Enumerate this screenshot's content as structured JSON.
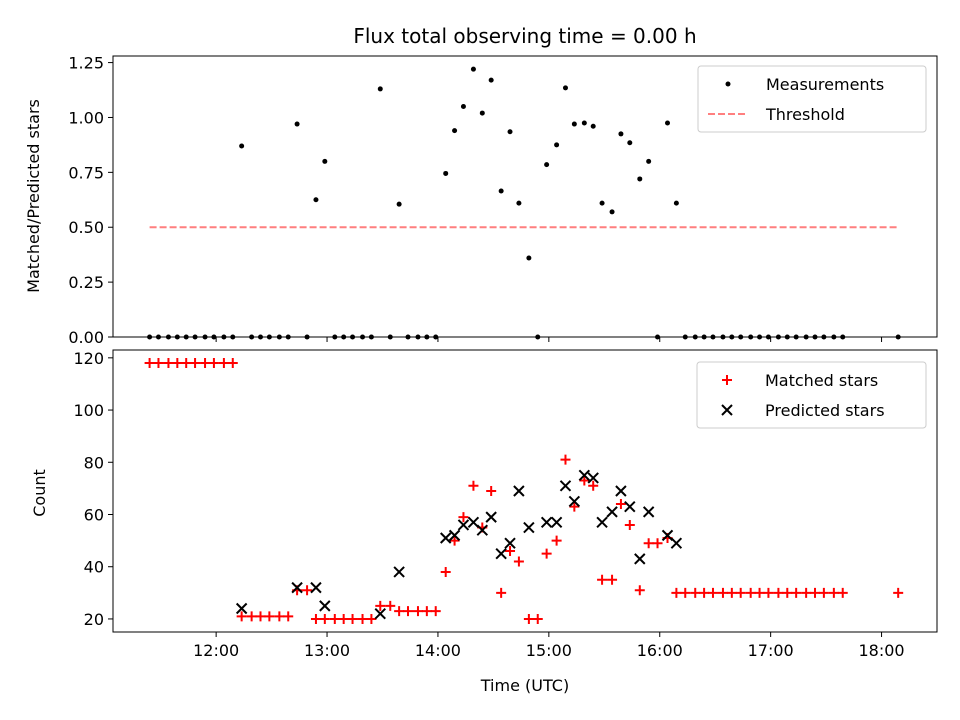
{
  "chart_data": [
    {
      "type": "scatter",
      "title": "Flux total observing time = 0.00 h",
      "ylabel": "Matched/Predicted stars",
      "xlabel": "",
      "xlim": [
        11.07,
        18.5
      ],
      "ylim": [
        0,
        1.28
      ],
      "xticks": [
        "12:00",
        "13:00",
        "14:00",
        "15:00",
        "16:00",
        "17:00",
        "18:00"
      ],
      "xtick_values": [
        12,
        13,
        14,
        15,
        16,
        17,
        18
      ],
      "xtick_labels_visible": false,
      "yticks": [
        "0.00",
        "0.25",
        "0.50",
        "0.75",
        "1.00",
        "1.25"
      ],
      "ytick_values": [
        0,
        0.25,
        0.5,
        0.75,
        1.0,
        1.25
      ],
      "legend": "top-right",
      "grid": false,
      "series": [
        {
          "name": "Measurements",
          "color": "#000000",
          "marker": "dot",
          "points": [
            [
              11.4,
              0
            ],
            [
              11.48,
              0
            ],
            [
              11.57,
              0
            ],
            [
              11.65,
              0
            ],
            [
              11.73,
              0
            ],
            [
              11.81,
              0
            ],
            [
              11.9,
              0
            ],
            [
              11.98,
              0
            ],
            [
              12.07,
              0
            ],
            [
              12.15,
              0
            ],
            [
              12.23,
              0.87
            ],
            [
              12.32,
              0
            ],
            [
              12.4,
              0
            ],
            [
              12.48,
              0
            ],
            [
              12.57,
              0
            ],
            [
              12.65,
              0
            ],
            [
              12.73,
              0.97
            ],
            [
              12.82,
              0
            ],
            [
              12.9,
              0.625
            ],
            [
              12.98,
              0.8
            ],
            [
              13.07,
              0
            ],
            [
              13.15,
              0
            ],
            [
              13.23,
              0
            ],
            [
              13.32,
              0
            ],
            [
              13.4,
              0
            ],
            [
              13.48,
              1.13
            ],
            [
              13.57,
              0
            ],
            [
              13.65,
              0.605
            ],
            [
              13.73,
              0
            ],
            [
              13.82,
              0
            ],
            [
              13.9,
              0
            ],
            [
              13.98,
              0
            ],
            [
              14.07,
              0.745
            ],
            [
              14.15,
              0.94
            ],
            [
              14.23,
              1.05
            ],
            [
              14.32,
              1.22
            ],
            [
              14.4,
              1.02
            ],
            [
              14.48,
              1.17
            ],
            [
              14.57,
              0.665
            ],
            [
              14.65,
              0.935
            ],
            [
              14.73,
              0.61
            ],
            [
              14.82,
              0.36
            ],
            [
              14.9,
              0
            ],
            [
              14.98,
              0.785
            ],
            [
              15.07,
              0.875
            ],
            [
              15.15,
              1.135
            ],
            [
              15.23,
              0.97
            ],
            [
              15.32,
              0.975
            ],
            [
              15.4,
              0.96
            ],
            [
              15.48,
              0.61
            ],
            [
              15.57,
              0.57
            ],
            [
              15.65,
              0.925
            ],
            [
              15.73,
              0.885
            ],
            [
              15.82,
              0.72
            ],
            [
              15.9,
              0.8
            ],
            [
              15.98,
              0
            ],
            [
              16.07,
              0.975
            ],
            [
              16.15,
              0.61
            ],
            [
              16.23,
              0
            ],
            [
              16.32,
              0
            ],
            [
              16.4,
              0
            ],
            [
              16.48,
              0
            ],
            [
              16.57,
              0
            ],
            [
              16.65,
              0
            ],
            [
              16.73,
              0
            ],
            [
              16.82,
              0
            ],
            [
              16.9,
              0
            ],
            [
              16.98,
              0
            ],
            [
              17.07,
              0
            ],
            [
              17.15,
              0
            ],
            [
              17.23,
              0
            ],
            [
              17.32,
              0
            ],
            [
              17.4,
              0
            ],
            [
              17.48,
              0
            ],
            [
              17.57,
              0
            ],
            [
              17.65,
              0
            ],
            [
              18.15,
              0
            ]
          ]
        },
        {
          "name": "Threshold",
          "color": "#ff7f7f",
          "marker": "dashed-line",
          "points": [
            [
              11.4,
              0.5
            ],
            [
              18.15,
              0.5
            ]
          ]
        }
      ]
    },
    {
      "type": "scatter",
      "title": "",
      "ylabel": "Count",
      "xlabel": "Time (UTC)",
      "xlim": [
        11.07,
        18.5
      ],
      "ylim": [
        15,
        123
      ],
      "xticks": [
        "12:00",
        "13:00",
        "14:00",
        "15:00",
        "16:00",
        "17:00",
        "18:00"
      ],
      "xtick_values": [
        12,
        13,
        14,
        15,
        16,
        17,
        18
      ],
      "xtick_labels_visible": true,
      "yticks": [
        "20",
        "40",
        "60",
        "80",
        "100",
        "120"
      ],
      "ytick_values": [
        20,
        40,
        60,
        80,
        100,
        120
      ],
      "legend": "top-right",
      "grid": false,
      "series": [
        {
          "name": "Matched stars",
          "color": "#ff0000",
          "marker": "plus",
          "points": [
            [
              11.4,
              118
            ],
            [
              11.48,
              118
            ],
            [
              11.57,
              118
            ],
            [
              11.65,
              118
            ],
            [
              11.73,
              118
            ],
            [
              11.81,
              118
            ],
            [
              11.9,
              118
            ],
            [
              11.98,
              118
            ],
            [
              12.07,
              118
            ],
            [
              12.15,
              118
            ],
            [
              12.23,
              21
            ],
            [
              12.32,
              21
            ],
            [
              12.4,
              21
            ],
            [
              12.48,
              21
            ],
            [
              12.57,
              21
            ],
            [
              12.65,
              21
            ],
            [
              12.73,
              31
            ],
            [
              12.82,
              31
            ],
            [
              12.9,
              20
            ],
            [
              12.98,
              20
            ],
            [
              13.07,
              20
            ],
            [
              13.15,
              20
            ],
            [
              13.23,
              20
            ],
            [
              13.32,
              20
            ],
            [
              13.4,
              20
            ],
            [
              13.48,
              25
            ],
            [
              13.57,
              25
            ],
            [
              13.65,
              23
            ],
            [
              13.73,
              23
            ],
            [
              13.82,
              23
            ],
            [
              13.9,
              23
            ],
            [
              13.98,
              23
            ],
            [
              14.07,
              38
            ],
            [
              14.15,
              50
            ],
            [
              14.23,
              59
            ],
            [
              14.32,
              71
            ],
            [
              14.4,
              55
            ],
            [
              14.48,
              69
            ],
            [
              14.57,
              30
            ],
            [
              14.65,
              46
            ],
            [
              14.73,
              42
            ],
            [
              14.82,
              20
            ],
            [
              14.9,
              20
            ],
            [
              14.98,
              45
            ],
            [
              15.07,
              50
            ],
            [
              15.15,
              81
            ],
            [
              15.23,
              63
            ],
            [
              15.32,
              73
            ],
            [
              15.4,
              71
            ],
            [
              15.48,
              35
            ],
            [
              15.57,
              35
            ],
            [
              15.65,
              64
            ],
            [
              15.73,
              56
            ],
            [
              15.82,
              31
            ],
            [
              15.9,
              49
            ],
            [
              15.98,
              49
            ],
            [
              16.07,
              51
            ],
            [
              16.15,
              30
            ],
            [
              16.23,
              30
            ],
            [
              16.32,
              30
            ],
            [
              16.4,
              30
            ],
            [
              16.48,
              30
            ],
            [
              16.57,
              30
            ],
            [
              16.65,
              30
            ],
            [
              16.73,
              30
            ],
            [
              16.82,
              30
            ],
            [
              16.9,
              30
            ],
            [
              16.98,
              30
            ],
            [
              17.07,
              30
            ],
            [
              17.15,
              30
            ],
            [
              17.23,
              30
            ],
            [
              17.32,
              30
            ],
            [
              17.4,
              30
            ],
            [
              17.48,
              30
            ],
            [
              17.57,
              30
            ],
            [
              17.65,
              30
            ],
            [
              18.15,
              30
            ]
          ]
        },
        {
          "name": "Predicted stars",
          "color": "#000000",
          "marker": "x",
          "points": [
            [
              12.23,
              24
            ],
            [
              12.73,
              32
            ],
            [
              12.9,
              32
            ],
            [
              12.98,
              25
            ],
            [
              13.48,
              22
            ],
            [
              13.65,
              38
            ],
            [
              14.07,
              51
            ],
            [
              14.15,
              52
            ],
            [
              14.23,
              56
            ],
            [
              14.32,
              57
            ],
            [
              14.4,
              54
            ],
            [
              14.48,
              59
            ],
            [
              14.57,
              45
            ],
            [
              14.65,
              49
            ],
            [
              14.73,
              69
            ],
            [
              14.82,
              55
            ],
            [
              14.98,
              57
            ],
            [
              15.07,
              57
            ],
            [
              15.15,
              71
            ],
            [
              15.23,
              65
            ],
            [
              15.32,
              75
            ],
            [
              15.4,
              74
            ],
            [
              15.48,
              57
            ],
            [
              15.57,
              61
            ],
            [
              15.65,
              69
            ],
            [
              15.73,
              63
            ],
            [
              15.82,
              43
            ],
            [
              15.9,
              61
            ],
            [
              16.07,
              52
            ],
            [
              16.15,
              49
            ]
          ]
        }
      ]
    }
  ]
}
